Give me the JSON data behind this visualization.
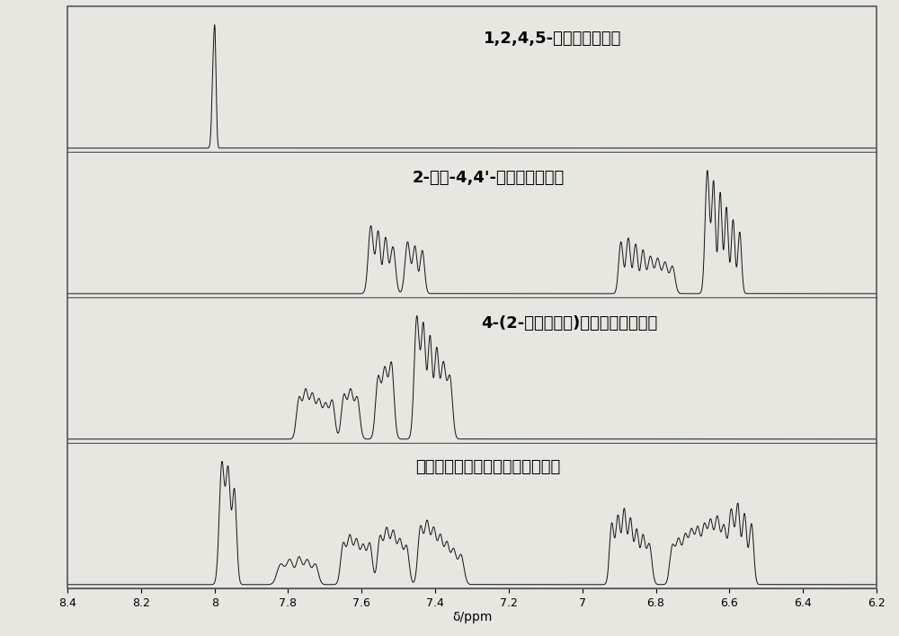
{
  "xlabel": "δ/ppm",
  "xmin": 6.2,
  "xmax": 8.4,
  "bg_color": "#e8e6e0",
  "line_color": "#111111",
  "labels": [
    "1,2,4,5-苯四甲酸二乙酯",
    "2-苯基-4,4'-二氨基二苯基醚",
    "4-(2-苯基乙決基)邻苯二甲酸单甲酯",
    "末端改性聚酰亚胺树脂原料组合物"
  ],
  "tick_positions": [
    8.4,
    8.2,
    8.0,
    7.8,
    7.6,
    7.4,
    7.2,
    7.0,
    6.8,
    6.6,
    6.4,
    6.2
  ],
  "tick_labels": [
    "8.4",
    "8.2",
    "8",
    "7.8",
    "7.6",
    "7.4",
    "7.2",
    "7",
    "6.8",
    "6.6",
    "6.4",
    "6.2"
  ]
}
